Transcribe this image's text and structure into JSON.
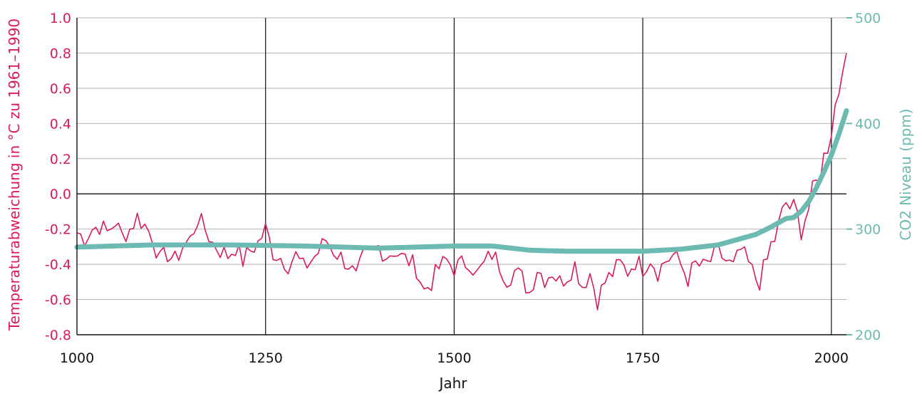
{
  "chart_data": {
    "type": "line",
    "title": "",
    "xlabel": "Jahr",
    "ylabel_left": "Temperaturabweichung in °C zu 1961–1990",
    "ylabel_right": "CO2 Niveau (ppm)",
    "xlim": [
      1000,
      2020
    ],
    "ylim_left": [
      -0.8,
      1.0
    ],
    "ylim_right": [
      200,
      500
    ],
    "x_ticks": [
      "1000",
      "1250",
      "1500",
      "1750",
      "2000"
    ],
    "y_left_ticks": [
      "-0.8",
      "-0.6",
      "-0.4",
      "-0.2",
      "0.0",
      "0.2",
      "0.4",
      "0.6",
      "0.8",
      "1.0"
    ],
    "y_right_ticks": [
      "200",
      "300",
      "400",
      "500"
    ],
    "grid": true,
    "colors": {
      "temperature": "#d81b60",
      "co2": "#6cbab2",
      "grid": "#b5b5b5",
      "axis": "#111111"
    },
    "series": [
      {
        "name": "Temperaturabweichung",
        "axis": "left",
        "x": [
          1000,
          1010,
          1020,
          1030,
          1040,
          1050,
          1060,
          1070,
          1080,
          1090,
          1100,
          1110,
          1120,
          1130,
          1140,
          1150,
          1160,
          1170,
          1180,
          1190,
          1200,
          1210,
          1220,
          1230,
          1240,
          1250,
          1260,
          1270,
          1280,
          1290,
          1300,
          1310,
          1320,
          1330,
          1340,
          1350,
          1360,
          1370,
          1380,
          1390,
          1400,
          1410,
          1420,
          1430,
          1440,
          1450,
          1460,
          1470,
          1480,
          1490,
          1500,
          1510,
          1520,
          1530,
          1540,
          1550,
          1560,
          1570,
          1580,
          1590,
          1600,
          1610,
          1620,
          1630,
          1640,
          1650,
          1660,
          1670,
          1680,
          1690,
          1700,
          1710,
          1720,
          1730,
          1740,
          1750,
          1760,
          1770,
          1780,
          1790,
          1800,
          1810,
          1820,
          1830,
          1840,
          1850,
          1860,
          1870,
          1880,
          1890,
          1900,
          1910,
          1920,
          1930,
          1940,
          1950,
          1960,
          1970,
          1980,
          1990,
          2000,
          2005,
          2010,
          2015,
          2020
        ],
        "values": [
          -0.22,
          -0.25,
          -0.2,
          -0.18,
          -0.22,
          -0.16,
          -0.24,
          -0.2,
          -0.13,
          -0.18,
          -0.24,
          -0.38,
          -0.34,
          -0.38,
          -0.3,
          -0.26,
          -0.14,
          -0.2,
          -0.28,
          -0.32,
          -0.35,
          -0.3,
          -0.38,
          -0.32,
          -0.28,
          -0.2,
          -0.33,
          -0.36,
          -0.4,
          -0.35,
          -0.42,
          -0.38,
          -0.33,
          -0.26,
          -0.32,
          -0.36,
          -0.4,
          -0.48,
          -0.36,
          -0.33,
          -0.3,
          -0.35,
          -0.32,
          -0.36,
          -0.38,
          -0.42,
          -0.55,
          -0.5,
          -0.42,
          -0.38,
          -0.42,
          -0.4,
          -0.38,
          -0.46,
          -0.4,
          -0.34,
          -0.4,
          -0.48,
          -0.44,
          -0.48,
          -0.56,
          -0.42,
          -0.48,
          -0.44,
          -0.5,
          -0.46,
          -0.4,
          -0.52,
          -0.45,
          -0.6,
          -0.5,
          -0.45,
          -0.4,
          -0.44,
          -0.38,
          -0.42,
          -0.36,
          -0.44,
          -0.38,
          -0.35,
          -0.4,
          -0.48,
          -0.4,
          -0.42,
          -0.38,
          -0.33,
          -0.38,
          -0.42,
          -0.32,
          -0.4,
          -0.48,
          -0.46,
          -0.3,
          -0.2,
          -0.05,
          -0.1,
          -0.18,
          -0.08,
          0.05,
          0.2,
          0.38,
          0.5,
          0.6,
          0.78,
          0.8
        ]
      },
      {
        "name": "CO2",
        "axis": "right",
        "x": [
          1000,
          1100,
          1200,
          1300,
          1400,
          1500,
          1550,
          1600,
          1650,
          1700,
          1750,
          1800,
          1850,
          1900,
          1920,
          1940,
          1950,
          1960,
          1970,
          1980,
          1990,
          2000,
          2010,
          2020
        ],
        "values": [
          283,
          285,
          285,
          284,
          282,
          284,
          284,
          280,
          279,
          279,
          279,
          281,
          285,
          295,
          302,
          310,
          311,
          317,
          326,
          339,
          354,
          370,
          390,
          412
        ]
      }
    ]
  }
}
